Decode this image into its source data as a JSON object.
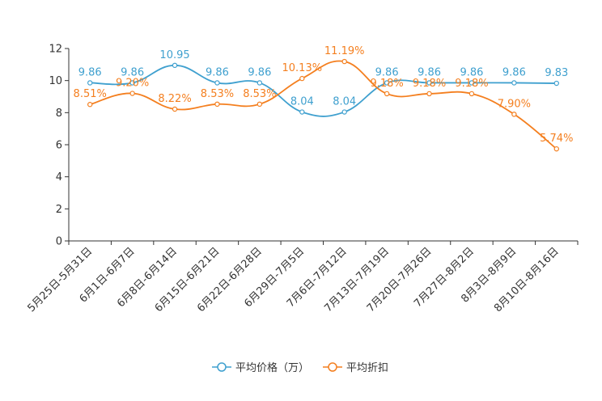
{
  "chart_data": {
    "type": "line",
    "categories": [
      "5月25日-5月31日",
      "6月1日-6月7日",
      "6月8日-6月14日",
      "6月15日-6月21日",
      "6月22日-6月28日",
      "6月29日-7月5日",
      "7月6日-7月12日",
      "7月13日-7月19日",
      "7月20日-7月26日",
      "7月27日-8月2日",
      "8月3日-8月9日",
      "8月10日-8月16日"
    ],
    "series": [
      {
        "name": "平均价格（万）",
        "color": "#3fa0cf",
        "values": [
          9.86,
          9.86,
          10.95,
          9.86,
          9.86,
          8.04,
          8.04,
          9.86,
          9.86,
          9.86,
          9.86,
          9.83
        ],
        "labels": [
          "9.86",
          "9.86",
          "10.95",
          "9.86",
          "9.86",
          "8.04",
          "8.04",
          "9.86",
          "9.86",
          "9.86",
          "9.86",
          "9.83"
        ]
      },
      {
        "name": "平均折扣",
        "color": "#f47f1f",
        "values": [
          8.51,
          9.2,
          8.22,
          8.53,
          8.53,
          10.13,
          11.19,
          9.18,
          9.18,
          9.18,
          7.9,
          5.74
        ],
        "labels": [
          "8.51%",
          "9.20%",
          "8.22%",
          "8.53%",
          "8.53%",
          "10.13%",
          "11.19%",
          "9.18%",
          "9.18%",
          "9.18%",
          "7.90%",
          "5.74%"
        ]
      }
    ],
    "ylim": [
      0,
      12
    ],
    "yticks": [
      "0",
      "2",
      "4",
      "6",
      "8",
      "10",
      "12"
    ],
    "legend_position": "bottom-center",
    "grid": false
  }
}
